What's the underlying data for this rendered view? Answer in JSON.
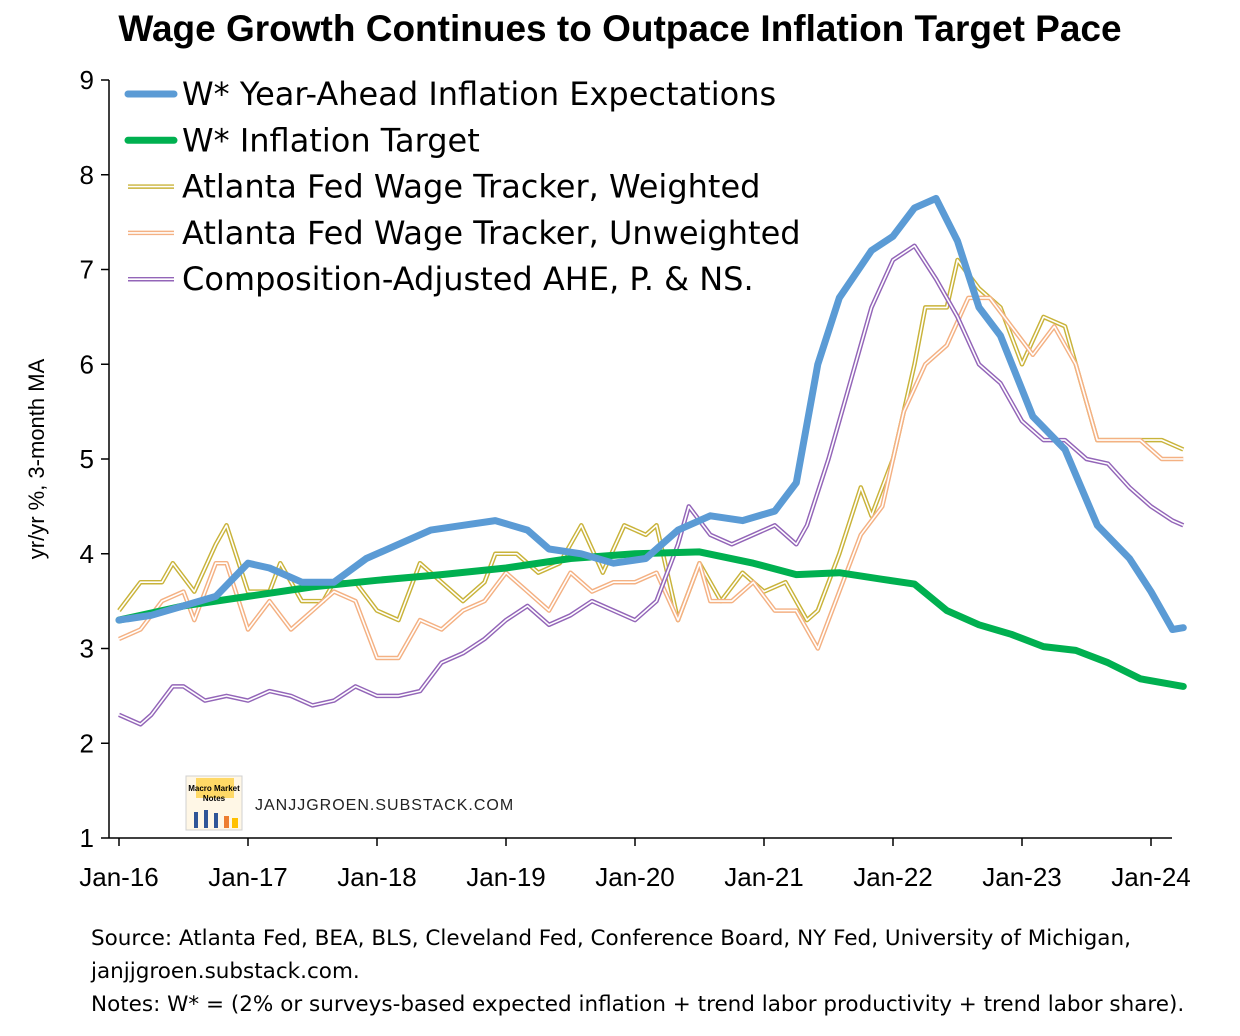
{
  "title": "Wage Growth Continues to Outpace Inflation Target Pace",
  "watermark": {
    "text": "JANJJGROEN.SUBSTACK.COM",
    "logo_line1": "Macro Market",
    "logo_line2": "Notes"
  },
  "footnote": {
    "line1": "Source: Atlanta Fed, BEA, BLS, Cleveland Fed, Conference Board, NY Fed, University of Michigan,",
    "line2": "janjjgroen.substack.com.",
    "line3": "Notes: W* = (2% or surveys-based expected inflation + trend labor productivity + trend labor share)."
  },
  "chart_data": {
    "type": "line",
    "xlabel": "",
    "ylabel": "yr/yr %, 3-month MA",
    "ylim": [
      1,
      9
    ],
    "yticks": [
      1,
      2,
      3,
      4,
      5,
      6,
      7,
      8,
      9
    ],
    "xlim": [
      "2016-01",
      "2024-04"
    ],
    "xticks": [
      "Jan-16",
      "Jan-17",
      "Jan-18",
      "Jan-19",
      "Jan-20",
      "Jan-21",
      "Jan-22",
      "Jan-23",
      "Jan-24"
    ],
    "legend_position": "top-left",
    "grid": false,
    "series": [
      {
        "name": "W* Year-Ahead Inflation Expectations",
        "color": "#5b9bd5",
        "style": "thick",
        "points": [
          [
            "2016-01",
            3.3
          ],
          [
            "2016-04",
            3.35
          ],
          [
            "2016-07",
            3.45
          ],
          [
            "2016-10",
            3.55
          ],
          [
            "2017-01",
            3.9
          ],
          [
            "2017-03",
            3.85
          ],
          [
            "2017-06",
            3.7
          ],
          [
            "2017-09",
            3.7
          ],
          [
            "2017-12",
            3.95
          ],
          [
            "2018-03",
            4.1
          ],
          [
            "2018-06",
            4.25
          ],
          [
            "2018-09",
            4.3
          ],
          [
            "2018-12",
            4.35
          ],
          [
            "2019-03",
            4.25
          ],
          [
            "2019-05",
            4.05
          ],
          [
            "2019-08",
            4.0
          ],
          [
            "2019-11",
            3.9
          ],
          [
            "2020-02",
            3.95
          ],
          [
            "2020-05",
            4.25
          ],
          [
            "2020-08",
            4.4
          ],
          [
            "2020-11",
            4.35
          ],
          [
            "2021-02",
            4.45
          ],
          [
            "2021-04",
            4.75
          ],
          [
            "2021-06",
            6.0
          ],
          [
            "2021-08",
            6.7
          ],
          [
            "2021-11",
            7.2
          ],
          [
            "2022-01",
            7.35
          ],
          [
            "2022-03",
            7.65
          ],
          [
            "2022-05",
            7.75
          ],
          [
            "2022-07",
            7.3
          ],
          [
            "2022-09",
            6.6
          ],
          [
            "2022-11",
            6.3
          ],
          [
            "2023-02",
            5.45
          ],
          [
            "2023-05",
            5.1
          ],
          [
            "2023-08",
            4.3
          ],
          [
            "2023-11",
            3.95
          ],
          [
            "2024-01",
            3.6
          ],
          [
            "2024-03",
            3.2
          ],
          [
            "2024-04",
            3.22
          ]
        ]
      },
      {
        "name": "W* Inflation Target",
        "color": "#00b050",
        "style": "thick",
        "points": [
          [
            "2016-01",
            3.3
          ],
          [
            "2016-07",
            3.45
          ],
          [
            "2017-01",
            3.55
          ],
          [
            "2017-07",
            3.65
          ],
          [
            "2018-01",
            3.72
          ],
          [
            "2018-07",
            3.78
          ],
          [
            "2019-01",
            3.85
          ],
          [
            "2019-07",
            3.95
          ],
          [
            "2020-01",
            4.0
          ],
          [
            "2020-07",
            4.02
          ],
          [
            "2020-12",
            3.9
          ],
          [
            "2021-04",
            3.78
          ],
          [
            "2021-08",
            3.8
          ],
          [
            "2021-12",
            3.73
          ],
          [
            "2022-03",
            3.68
          ],
          [
            "2022-06",
            3.4
          ],
          [
            "2022-09",
            3.25
          ],
          [
            "2022-12",
            3.15
          ],
          [
            "2023-03",
            3.02
          ],
          [
            "2023-06",
            2.98
          ],
          [
            "2023-09",
            2.85
          ],
          [
            "2023-12",
            2.68
          ],
          [
            "2024-04",
            2.6
          ]
        ]
      },
      {
        "name": "Atlanta Fed Wage Tracker, Weighted",
        "color": "#c9b33a",
        "style": "double",
        "points": [
          [
            "2016-01",
            3.4
          ],
          [
            "2016-03",
            3.7
          ],
          [
            "2016-05",
            3.7
          ],
          [
            "2016-06",
            3.9
          ],
          [
            "2016-08",
            3.6
          ],
          [
            "2016-10",
            4.1
          ],
          [
            "2016-11",
            4.3
          ],
          [
            "2017-01",
            3.6
          ],
          [
            "2017-03",
            3.6
          ],
          [
            "2017-04",
            3.9
          ],
          [
            "2017-06",
            3.5
          ],
          [
            "2017-08",
            3.5
          ],
          [
            "2017-09",
            3.7
          ],
          [
            "2017-11",
            3.7
          ],
          [
            "2018-01",
            3.4
          ],
          [
            "2018-03",
            3.3
          ],
          [
            "2018-05",
            3.9
          ],
          [
            "2018-07",
            3.7
          ],
          [
            "2018-09",
            3.5
          ],
          [
            "2018-11",
            3.7
          ],
          [
            "2018-12",
            4.0
          ],
          [
            "2019-02",
            4.0
          ],
          [
            "2019-04",
            3.8
          ],
          [
            "2019-06",
            3.9
          ],
          [
            "2019-08",
            4.3
          ],
          [
            "2019-10",
            3.8
          ],
          [
            "2019-12",
            4.3
          ],
          [
            "2020-02",
            4.2
          ],
          [
            "2020-03",
            4.3
          ],
          [
            "2020-05",
            3.3
          ],
          [
            "2020-07",
            3.9
          ],
          [
            "2020-09",
            3.5
          ],
          [
            "2020-11",
            3.8
          ],
          [
            "2021-01",
            3.6
          ],
          [
            "2021-03",
            3.7
          ],
          [
            "2021-05",
            3.3
          ],
          [
            "2021-06",
            3.4
          ],
          [
            "2021-08",
            4.0
          ],
          [
            "2021-10",
            4.7
          ],
          [
            "2021-11",
            4.4
          ],
          [
            "2022-01",
            5.0
          ],
          [
            "2022-03",
            6.0
          ],
          [
            "2022-04",
            6.6
          ],
          [
            "2022-06",
            6.6
          ],
          [
            "2022-07",
            7.1
          ],
          [
            "2022-09",
            6.8
          ],
          [
            "2022-11",
            6.6
          ],
          [
            "2023-01",
            6.0
          ],
          [
            "2023-03",
            6.5
          ],
          [
            "2023-05",
            6.4
          ],
          [
            "2023-07",
            5.6
          ],
          [
            "2023-08",
            5.2
          ],
          [
            "2023-10",
            5.2
          ],
          [
            "2023-12",
            5.2
          ],
          [
            "2024-02",
            5.2
          ],
          [
            "2024-04",
            5.1
          ]
        ]
      },
      {
        "name": "Atlanta Fed Wage Tracker, Unweighted",
        "color": "#f4b183",
        "style": "double",
        "points": [
          [
            "2016-01",
            3.1
          ],
          [
            "2016-03",
            3.2
          ],
          [
            "2016-05",
            3.5
          ],
          [
            "2016-07",
            3.6
          ],
          [
            "2016-08",
            3.3
          ],
          [
            "2016-10",
            3.9
          ],
          [
            "2016-11",
            3.9
          ],
          [
            "2017-01",
            3.2
          ],
          [
            "2017-03",
            3.5
          ],
          [
            "2017-05",
            3.2
          ],
          [
            "2017-07",
            3.4
          ],
          [
            "2017-09",
            3.6
          ],
          [
            "2017-11",
            3.5
          ],
          [
            "2018-01",
            2.9
          ],
          [
            "2018-03",
            2.9
          ],
          [
            "2018-05",
            3.3
          ],
          [
            "2018-07",
            3.2
          ],
          [
            "2018-09",
            3.4
          ],
          [
            "2018-11",
            3.5
          ],
          [
            "2019-01",
            3.8
          ],
          [
            "2019-03",
            3.6
          ],
          [
            "2019-05",
            3.4
          ],
          [
            "2019-07",
            3.8
          ],
          [
            "2019-09",
            3.6
          ],
          [
            "2019-11",
            3.7
          ],
          [
            "2020-01",
            3.7
          ],
          [
            "2020-03",
            3.8
          ],
          [
            "2020-05",
            3.3
          ],
          [
            "2020-07",
            3.9
          ],
          [
            "2020-08",
            3.5
          ],
          [
            "2020-10",
            3.5
          ],
          [
            "2020-12",
            3.7
          ],
          [
            "2021-02",
            3.4
          ],
          [
            "2021-04",
            3.4
          ],
          [
            "2021-06",
            3.0
          ],
          [
            "2021-08",
            3.6
          ],
          [
            "2021-10",
            4.2
          ],
          [
            "2021-12",
            4.5
          ],
          [
            "2022-02",
            5.5
          ],
          [
            "2022-04",
            6.0
          ],
          [
            "2022-06",
            6.2
          ],
          [
            "2022-08",
            6.7
          ],
          [
            "2022-10",
            6.7
          ],
          [
            "2022-12",
            6.4
          ],
          [
            "2023-02",
            6.1
          ],
          [
            "2023-04",
            6.4
          ],
          [
            "2023-06",
            6.0
          ],
          [
            "2023-08",
            5.2
          ],
          [
            "2023-10",
            5.2
          ],
          [
            "2023-12",
            5.2
          ],
          [
            "2024-02",
            5.0
          ],
          [
            "2024-04",
            5.0
          ]
        ]
      },
      {
        "name": "Composition-Adjusted AHE, P. & NS.",
        "color": "#9365b8",
        "style": "double",
        "points": [
          [
            "2016-01",
            2.3
          ],
          [
            "2016-03",
            2.2
          ],
          [
            "2016-04",
            2.3
          ],
          [
            "2016-06",
            2.6
          ],
          [
            "2016-07",
            2.6
          ],
          [
            "2016-09",
            2.45
          ],
          [
            "2016-11",
            2.5
          ],
          [
            "2017-01",
            2.45
          ],
          [
            "2017-03",
            2.55
          ],
          [
            "2017-05",
            2.5
          ],
          [
            "2017-07",
            2.4
          ],
          [
            "2017-09",
            2.45
          ],
          [
            "2017-11",
            2.6
          ],
          [
            "2018-01",
            2.5
          ],
          [
            "2018-03",
            2.5
          ],
          [
            "2018-05",
            2.55
          ],
          [
            "2018-07",
            2.85
          ],
          [
            "2018-09",
            2.95
          ],
          [
            "2018-11",
            3.1
          ],
          [
            "2019-01",
            3.3
          ],
          [
            "2019-03",
            3.45
          ],
          [
            "2019-05",
            3.25
          ],
          [
            "2019-07",
            3.35
          ],
          [
            "2019-09",
            3.5
          ],
          [
            "2019-11",
            3.4
          ],
          [
            "2020-01",
            3.3
          ],
          [
            "2020-03",
            3.5
          ],
          [
            "2020-05",
            4.1
          ],
          [
            "2020-06",
            4.5
          ],
          [
            "2020-08",
            4.2
          ],
          [
            "2020-10",
            4.1
          ],
          [
            "2020-12",
            4.2
          ],
          [
            "2021-02",
            4.3
          ],
          [
            "2021-04",
            4.1
          ],
          [
            "2021-05",
            4.3
          ],
          [
            "2021-07",
            5.0
          ],
          [
            "2021-09",
            5.8
          ],
          [
            "2021-11",
            6.6
          ],
          [
            "2022-01",
            7.1
          ],
          [
            "2022-03",
            7.25
          ],
          [
            "2022-05",
            6.9
          ],
          [
            "2022-07",
            6.5
          ],
          [
            "2022-09",
            6.0
          ],
          [
            "2022-11",
            5.8
          ],
          [
            "2023-01",
            5.4
          ],
          [
            "2023-03",
            5.2
          ],
          [
            "2023-05",
            5.2
          ],
          [
            "2023-07",
            5.0
          ],
          [
            "2023-09",
            4.95
          ],
          [
            "2023-11",
            4.7
          ],
          [
            "2024-01",
            4.5
          ],
          [
            "2024-03",
            4.35
          ],
          [
            "2024-04",
            4.3
          ]
        ]
      }
    ]
  }
}
